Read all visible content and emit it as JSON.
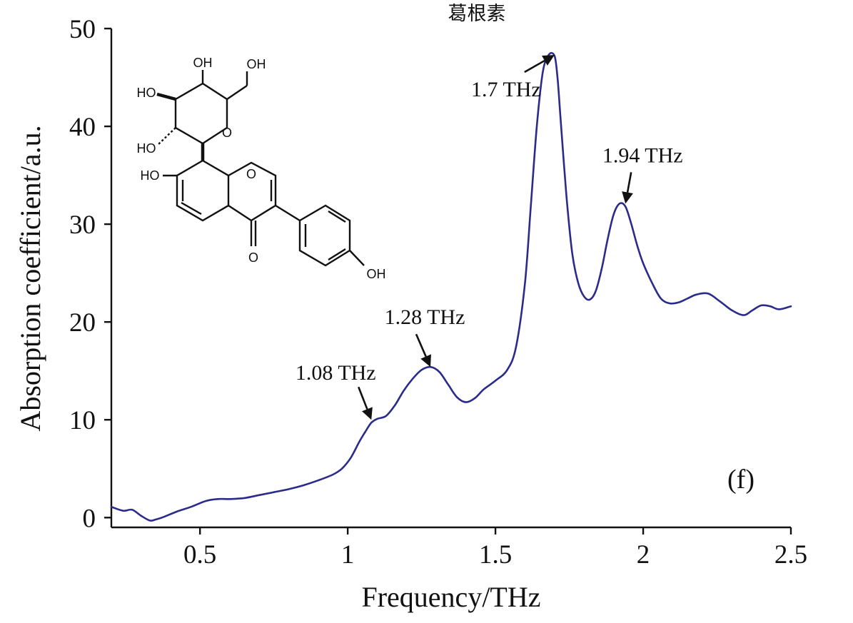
{
  "chart_data": {
    "type": "line",
    "title": "葛根素",
    "xlabel": "Frequency/THz",
    "ylabel": "Absorption coefficient/a.u.",
    "xlim": [
      0.2,
      2.5
    ],
    "ylim": [
      -1,
      50
    ],
    "x_ticks": [
      0.5,
      1,
      1.5,
      2,
      2.5
    ],
    "x_tick_labels": [
      "0.5",
      "1",
      "1.5",
      "2",
      "2.5"
    ],
    "y_ticks": [
      0,
      10,
      20,
      30,
      40,
      50
    ],
    "y_tick_labels": [
      "0",
      "10",
      "20",
      "30",
      "40",
      "50"
    ],
    "grid": false,
    "line_color": "#2b2b8c",
    "panel_label": "(f)",
    "series": [
      {
        "x": [
          0.2,
          0.24,
          0.27,
          0.3,
          0.33,
          0.35,
          0.38,
          0.42,
          0.47,
          0.52,
          0.56,
          0.6,
          0.65,
          0.7,
          0.75,
          0.8,
          0.85,
          0.9,
          0.95,
          0.98,
          1.01,
          1.04,
          1.06,
          1.08,
          1.1,
          1.13,
          1.16,
          1.19,
          1.22,
          1.25,
          1.28,
          1.31,
          1.34,
          1.37,
          1.4,
          1.43,
          1.46,
          1.5,
          1.54,
          1.57,
          1.6,
          1.62,
          1.64,
          1.66,
          1.68,
          1.7,
          1.71,
          1.72,
          1.74,
          1.76,
          1.78,
          1.8,
          1.82,
          1.84,
          1.86,
          1.88,
          1.9,
          1.92,
          1.94,
          1.96,
          1.98,
          2.0,
          2.03,
          2.06,
          2.09,
          2.12,
          2.15,
          2.18,
          2.22,
          2.26,
          2.3,
          2.34,
          2.37,
          2.4,
          2.43,
          2.46,
          2.5
        ],
        "y": [
          1.1,
          0.7,
          0.8,
          0.2,
          -0.3,
          -0.2,
          0.1,
          0.6,
          1.1,
          1.7,
          1.9,
          1.9,
          2.0,
          2.3,
          2.6,
          2.9,
          3.3,
          3.8,
          4.4,
          5.0,
          6.1,
          7.8,
          8.8,
          9.7,
          10.1,
          10.4,
          11.5,
          13.0,
          14.2,
          15.1,
          15.4,
          14.9,
          13.6,
          12.3,
          11.8,
          12.2,
          13.1,
          14.0,
          15.1,
          17.5,
          24.0,
          32.0,
          40.0,
          45.5,
          47.3,
          47.2,
          45.0,
          41.0,
          33.0,
          27.0,
          24.0,
          22.6,
          22.3,
          23.2,
          25.5,
          28.5,
          31.0,
          32.1,
          31.8,
          30.0,
          27.8,
          26.0,
          24.0,
          22.4,
          21.9,
          22.0,
          22.4,
          22.8,
          22.9,
          22.1,
          21.2,
          20.7,
          21.2,
          21.7,
          21.6,
          21.3,
          21.6
        ]
      }
    ],
    "annotations": [
      {
        "text": "1.08 THz",
        "x": 1.08,
        "y": 10.0
      },
      {
        "text": "1.28 THz",
        "x": 1.28,
        "y": 15.4
      },
      {
        "text": "1.7 THz",
        "x": 1.7,
        "y": 47.3
      },
      {
        "text": "1.94 THz",
        "x": 1.94,
        "y": 32.1
      }
    ],
    "molecule_labels": [
      "OH",
      "OH",
      "HO",
      "HO",
      "O",
      "HO",
      "O",
      "O",
      "OH"
    ]
  }
}
